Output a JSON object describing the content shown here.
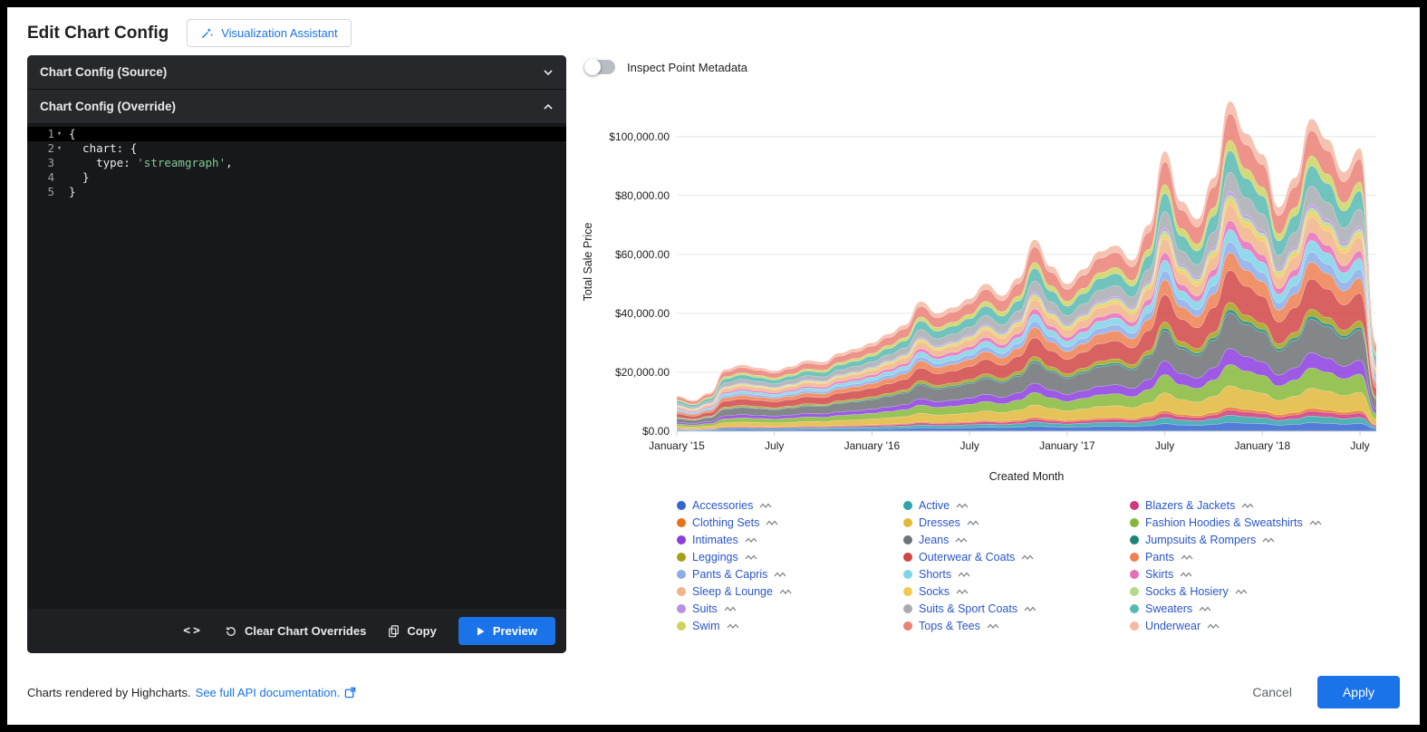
{
  "header": {
    "title": "Edit Chart Config",
    "assistant_button": "Visualization Assistant"
  },
  "editor": {
    "source_header": "Chart Config (Source)",
    "override_header": "Chart Config (Override)",
    "code_lines": [
      {
        "num": "1",
        "fold": true,
        "active": true,
        "segments": [
          {
            "t": "{",
            "c": "plain"
          }
        ]
      },
      {
        "num": "2",
        "fold": true,
        "active": false,
        "segments": [
          {
            "t": "  chart: {",
            "c": "plain"
          }
        ]
      },
      {
        "num": "3",
        "fold": false,
        "active": false,
        "segments": [
          {
            "t": "    type: ",
            "c": "plain"
          },
          {
            "t": "'streamgraph'",
            "c": "string"
          },
          {
            "t": ",",
            "c": "plain"
          }
        ]
      },
      {
        "num": "4",
        "fold": false,
        "active": false,
        "segments": [
          {
            "t": "  }",
            "c": "plain"
          }
        ]
      },
      {
        "num": "5",
        "fold": false,
        "active": false,
        "segments": [
          {
            "t": "}",
            "c": "plain"
          }
        ]
      }
    ],
    "toolbar": {
      "code_icon": "<>",
      "clear_label": "Clear Chart Overrides",
      "copy_label": "Copy",
      "preview_label": "Preview"
    }
  },
  "inspect_toggle": {
    "label": "Inspect Point Metadata",
    "state": "off"
  },
  "footer": {
    "note": "Charts rendered by Highcharts.",
    "link": "See full API documentation.",
    "cancel_label": "Cancel",
    "apply_label": "Apply"
  },
  "colors": {
    "accent_blue": "#1a73e8",
    "legend_text": "#2a56c6",
    "panel_bg": "#1e2023",
    "editor_bg": "#17181a",
    "string_green": "#81c995"
  },
  "chart_data": {
    "type": "area",
    "stacking": "stacked",
    "title": "",
    "xlabel": "Created Month",
    "ylabel": "Total Sale Price",
    "ylim": [
      0,
      115000
    ],
    "y_scale_max": 115000,
    "grid": true,
    "legend_position": "bottom",
    "x_tick_labels": [
      "January '15",
      "July",
      "January '16",
      "July",
      "January '17",
      "July",
      "January '18",
      "July"
    ],
    "x_tick_positions": [
      0,
      6,
      12,
      18,
      24,
      30,
      36,
      42
    ],
    "y_ticks": [
      0,
      20000,
      40000,
      60000,
      80000,
      100000
    ],
    "y_tick_labels": [
      "$0.00",
      "$20,000.00",
      "$40,000.00",
      "$60,000.00",
      "$80,000.00",
      "$100,000.00"
    ],
    "months": [
      "2015-01",
      "2015-02",
      "2015-03",
      "2015-04",
      "2015-05",
      "2015-06",
      "2015-07",
      "2015-08",
      "2015-09",
      "2015-10",
      "2015-11",
      "2015-12",
      "2016-01",
      "2016-02",
      "2016-03",
      "2016-04",
      "2016-05",
      "2016-06",
      "2016-07",
      "2016-08",
      "2016-09",
      "2016-10",
      "2016-11",
      "2016-12",
      "2017-01",
      "2017-02",
      "2017-03",
      "2017-04",
      "2017-05",
      "2017-06",
      "2017-07",
      "2017-08",
      "2017-09",
      "2017-10",
      "2017-11",
      "2017-12",
      "2018-01",
      "2018-02",
      "2018-03",
      "2018-04",
      "2018-05",
      "2018-06",
      "2018-07",
      "2018-08"
    ],
    "monthly_totals": [
      12000,
      10500,
      13000,
      21000,
      22500,
      21500,
      20500,
      22000,
      24000,
      23500,
      26500,
      28000,
      30000,
      33000,
      36000,
      44000,
      40000,
      42000,
      45000,
      50000,
      46000,
      52000,
      65000,
      56000,
      50000,
      55000,
      61000,
      63000,
      58000,
      70000,
      95000,
      78000,
      72000,
      86000,
      112000,
      101000,
      94000,
      76000,
      86000,
      106000,
      99000,
      88000,
      96000,
      30000
    ],
    "series": [
      {
        "name": "Accessories",
        "color": "#3565d0",
        "share": 0.025
      },
      {
        "name": "Active",
        "color": "#31a3ad",
        "share": 0.02
      },
      {
        "name": "Blazers & Jackets",
        "color": "#cf3a7c",
        "share": 0.015
      },
      {
        "name": "Clothing Sets",
        "color": "#e8711a",
        "share": 0.008
      },
      {
        "name": "Dresses",
        "color": "#e2b93b",
        "share": 0.06
      },
      {
        "name": "Fashion Hoodies & Sweatshirts",
        "color": "#85b83a",
        "share": 0.06
      },
      {
        "name": "Intimates",
        "color": "#8c3de0",
        "share": 0.045
      },
      {
        "name": "Jeans",
        "color": "#6f7276",
        "share": 0.1
      },
      {
        "name": "Jumpsuits & Rompers",
        "color": "#1b8577",
        "share": 0.01
      },
      {
        "name": "Leggings",
        "color": "#a3a019",
        "share": 0.02
      },
      {
        "name": "Outerwear & Coats",
        "color": "#d14545",
        "share": 0.09
      },
      {
        "name": "Pants",
        "color": "#ef8050",
        "share": 0.05
      },
      {
        "name": "Pants & Capris",
        "color": "#8cabe8",
        "share": 0.03
      },
      {
        "name": "Shorts",
        "color": "#7fd4e8",
        "share": 0.035
      },
      {
        "name": "Skirts",
        "color": "#e570b8",
        "share": 0.025
      },
      {
        "name": "Sleep & Lounge",
        "color": "#f0b488",
        "share": 0.045
      },
      {
        "name": "Socks",
        "color": "#f2ca52",
        "share": 0.015
      },
      {
        "name": "Socks & Hosiery",
        "color": "#b5d98a",
        "share": 0.012
      },
      {
        "name": "Suits",
        "color": "#bb8fe3",
        "share": 0.01
      },
      {
        "name": "Suits & Sport Coats",
        "color": "#a8abb0",
        "share": 0.055
      },
      {
        "name": "Sweaters",
        "color": "#58b8b2",
        "share": 0.06
      },
      {
        "name": "Swim",
        "color": "#ccd45e",
        "share": 0.03
      },
      {
        "name": "Tops & Tees",
        "color": "#ea8076",
        "share": 0.075
      },
      {
        "name": "Underwear",
        "color": "#f4b8a4",
        "share": 0.035
      }
    ]
  }
}
